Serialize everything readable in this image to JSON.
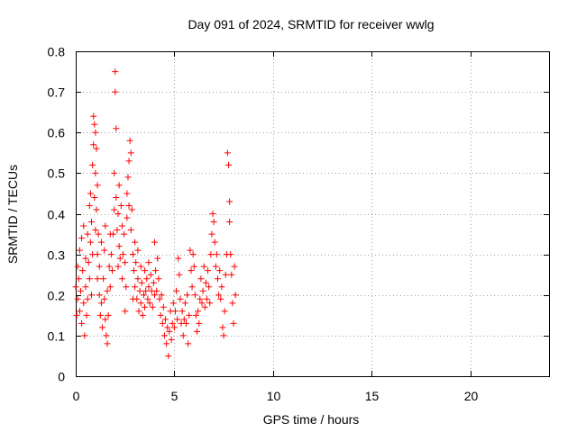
{
  "chart_data": {
    "type": "scatter",
    "title": "Day 091 of 2024, SRMTID for receiver wwlg",
    "xlabel": "GPS time / hours",
    "ylabel": "SRMTID / TECUs",
    "xlim": [
      0,
      24
    ],
    "ylim": [
      0,
      0.8
    ],
    "xticks": [
      0,
      5,
      10,
      15,
      20
    ],
    "yticks": [
      0,
      0.1,
      0.2,
      0.3,
      0.4,
      0.5,
      0.6,
      0.7,
      0.8
    ],
    "grid": true,
    "marker": "+",
    "color": "#ff0000",
    "series": [
      {
        "name": "SRMTID",
        "points": [
          [
            0.0,
            0.22
          ],
          [
            0.05,
            0.15
          ],
          [
            0.1,
            0.19
          ],
          [
            0.1,
            0.27
          ],
          [
            0.15,
            0.24
          ],
          [
            0.2,
            0.31
          ],
          [
            0.2,
            0.16
          ],
          [
            0.25,
            0.21
          ],
          [
            0.3,
            0.34
          ],
          [
            0.3,
            0.13
          ],
          [
            0.35,
            0.26
          ],
          [
            0.4,
            0.18
          ],
          [
            0.4,
            0.37
          ],
          [
            0.45,
            0.1
          ],
          [
            0.5,
            0.22
          ],
          [
            0.5,
            0.29
          ],
          [
            0.55,
            0.15
          ],
          [
            0.6,
            0.35
          ],
          [
            0.6,
            0.19
          ],
          [
            0.65,
            0.28
          ],
          [
            0.7,
            0.42
          ],
          [
            0.7,
            0.24
          ],
          [
            0.75,
            0.45
          ],
          [
            0.75,
            0.33
          ],
          [
            0.8,
            0.2
          ],
          [
            0.8,
            0.38
          ],
          [
            0.85,
            0.52
          ],
          [
            0.85,
            0.3
          ],
          [
            0.9,
            0.57
          ],
          [
            0.9,
            0.64
          ],
          [
            0.95,
            0.62
          ],
          [
            0.95,
            0.44
          ],
          [
            1.0,
            0.6
          ],
          [
            1.0,
            0.5
          ],
          [
            1.0,
            0.36
          ],
          [
            1.05,
            0.56
          ],
          [
            1.05,
            0.41
          ],
          [
            1.1,
            0.47
          ],
          [
            1.1,
            0.3
          ],
          [
            1.1,
            0.24
          ],
          [
            1.15,
            0.35
          ],
          [
            1.2,
            0.27
          ],
          [
            1.2,
            0.2
          ],
          [
            1.25,
            0.15
          ],
          [
            1.3,
            0.33
          ],
          [
            1.3,
            0.18
          ],
          [
            1.35,
            0.12
          ],
          [
            1.4,
            0.24
          ],
          [
            1.45,
            0.31
          ],
          [
            1.45,
            0.19
          ],
          [
            1.5,
            0.37
          ],
          [
            1.5,
            0.14
          ],
          [
            1.55,
            0.1
          ],
          [
            1.6,
            0.08
          ],
          [
            1.6,
            0.21
          ],
          [
            1.65,
            0.15
          ],
          [
            1.7,
            0.27
          ],
          [
            1.75,
            0.22
          ],
          [
            1.75,
            0.35
          ],
          [
            1.8,
            0.3
          ],
          [
            1.85,
            0.26
          ],
          [
            1.9,
            0.35
          ],
          [
            1.95,
            0.5
          ],
          [
            1.95,
            0.41
          ],
          [
            2.0,
            0.75
          ],
          [
            2.0,
            0.7
          ],
          [
            2.05,
            0.61
          ],
          [
            2.05,
            0.44
          ],
          [
            2.1,
            0.36
          ],
          [
            2.15,
            0.27
          ],
          [
            2.15,
            0.4
          ],
          [
            2.2,
            0.32
          ],
          [
            2.2,
            0.47
          ],
          [
            2.25,
            0.29
          ],
          [
            2.3,
            0.42
          ],
          [
            2.35,
            0.37
          ],
          [
            2.35,
            0.24
          ],
          [
            2.4,
            0.3
          ],
          [
            2.45,
            0.35
          ],
          [
            2.5,
            0.28
          ],
          [
            2.5,
            0.16
          ],
          [
            2.55,
            0.22
          ],
          [
            2.6,
            0.39
          ],
          [
            2.6,
            0.45
          ],
          [
            2.65,
            0.49
          ],
          [
            2.7,
            0.53
          ],
          [
            2.7,
            0.42
          ],
          [
            2.75,
            0.58
          ],
          [
            2.8,
            0.55
          ],
          [
            2.8,
            0.36
          ],
          [
            2.85,
            0.41
          ],
          [
            2.9,
            0.3
          ],
          [
            2.9,
            0.19
          ],
          [
            2.95,
            0.26
          ],
          [
            3.0,
            0.33
          ],
          [
            3.0,
            0.22
          ],
          [
            3.05,
            0.28
          ],
          [
            3.1,
            0.19
          ],
          [
            3.15,
            0.24
          ],
          [
            3.15,
            0.31
          ],
          [
            3.2,
            0.16
          ],
          [
            3.25,
            0.21
          ],
          [
            3.3,
            0.27
          ],
          [
            3.3,
            0.18
          ],
          [
            3.35,
            0.23
          ],
          [
            3.4,
            0.15
          ],
          [
            3.45,
            0.2
          ],
          [
            3.5,
            0.26
          ],
          [
            3.5,
            0.17
          ],
          [
            3.55,
            0.21
          ],
          [
            3.6,
            0.24
          ],
          [
            3.65,
            0.19
          ],
          [
            3.7,
            0.22
          ],
          [
            3.7,
            0.28
          ],
          [
            3.75,
            0.18
          ],
          [
            3.8,
            0.25
          ],
          [
            3.85,
            0.21
          ],
          [
            3.9,
            0.17
          ],
          [
            3.95,
            0.23
          ],
          [
            4.0,
            0.33
          ],
          [
            4.0,
            0.2
          ],
          [
            4.05,
            0.26
          ],
          [
            4.1,
            0.21
          ],
          [
            4.15,
            0.29
          ],
          [
            4.2,
            0.24
          ],
          [
            4.25,
            0.19
          ],
          [
            4.3,
            0.15
          ],
          [
            4.35,
            0.2
          ],
          [
            4.4,
            0.13
          ],
          [
            4.45,
            0.17
          ],
          [
            4.5,
            0.1
          ],
          [
            4.55,
            0.14
          ],
          [
            4.6,
            0.08
          ],
          [
            4.65,
            0.12
          ],
          [
            4.7,
            0.05
          ],
          [
            4.75,
            0.11
          ],
          [
            4.8,
            0.16
          ],
          [
            4.85,
            0.09
          ],
          [
            4.9,
            0.13
          ],
          [
            4.95,
            0.18
          ],
          [
            5.0,
            0.12
          ],
          [
            5.05,
            0.16
          ],
          [
            5.1,
            0.21
          ],
          [
            5.15,
            0.14
          ],
          [
            5.2,
            0.29
          ],
          [
            5.25,
            0.25
          ],
          [
            5.3,
            0.19
          ],
          [
            5.35,
            0.13
          ],
          [
            5.4,
            0.16
          ],
          [
            5.45,
            0.1
          ],
          [
            5.5,
            0.14
          ],
          [
            5.55,
            0.18
          ],
          [
            5.6,
            0.13
          ],
          [
            5.65,
            0.2
          ],
          [
            5.7,
            0.08
          ],
          [
            5.75,
            0.15
          ],
          [
            5.8,
            0.31
          ],
          [
            5.85,
            0.26
          ],
          [
            5.9,
            0.22
          ],
          [
            5.95,
            0.3
          ],
          [
            6.0,
            0.27
          ],
          [
            6.05,
            0.2
          ],
          [
            6.1,
            0.15
          ],
          [
            6.15,
            0.11
          ],
          [
            6.2,
            0.16
          ],
          [
            6.25,
            0.13
          ],
          [
            6.3,
            0.19
          ],
          [
            6.35,
            0.24
          ],
          [
            6.4,
            0.18
          ],
          [
            6.45,
            0.21
          ],
          [
            6.5,
            0.27
          ],
          [
            6.55,
            0.17
          ],
          [
            6.6,
            0.23
          ],
          [
            6.65,
            0.19
          ],
          [
            6.7,
            0.26
          ],
          [
            6.75,
            0.22
          ],
          [
            6.8,
            0.18
          ],
          [
            6.85,
            0.3
          ],
          [
            6.9,
            0.35
          ],
          [
            6.95,
            0.4
          ],
          [
            7.0,
            0.38
          ],
          [
            7.05,
            0.33
          ],
          [
            7.1,
            0.27
          ],
          [
            7.15,
            0.3
          ],
          [
            7.2,
            0.24
          ],
          [
            7.25,
            0.2
          ],
          [
            7.3,
            0.26
          ],
          [
            7.35,
            0.19
          ],
          [
            7.4,
            0.22
          ],
          [
            7.45,
            0.12
          ],
          [
            7.5,
            0.1
          ],
          [
            7.55,
            0.16
          ],
          [
            7.6,
            0.25
          ],
          [
            7.65,
            0.3
          ],
          [
            7.7,
            0.55
          ],
          [
            7.75,
            0.52
          ],
          [
            7.8,
            0.43
          ],
          [
            7.8,
            0.38
          ],
          [
            7.85,
            0.3
          ],
          [
            7.9,
            0.25
          ],
          [
            7.95,
            0.18
          ],
          [
            8.0,
            0.13
          ],
          [
            8.05,
            0.27
          ],
          [
            8.1,
            0.2
          ]
        ]
      }
    ]
  }
}
